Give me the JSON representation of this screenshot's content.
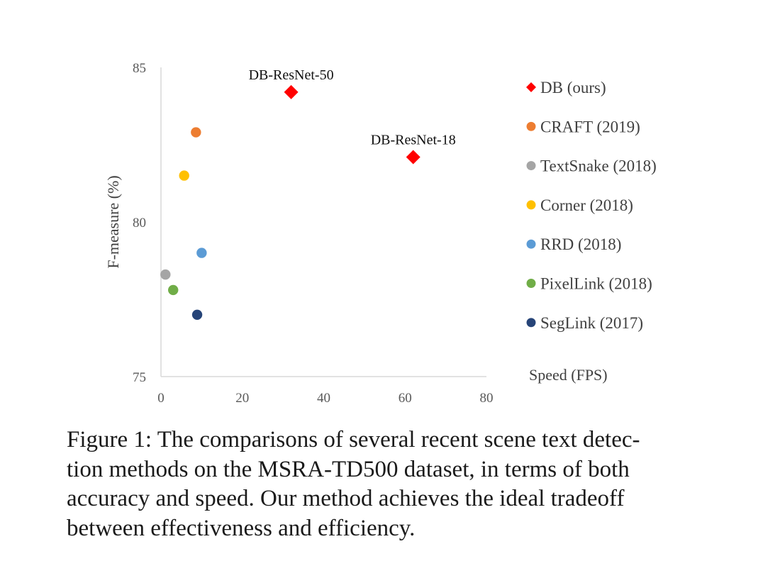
{
  "chart_data": {
    "type": "scatter",
    "xlabel": "Speed (FPS)",
    "ylabel": "F-measure (%)",
    "xlim": [
      0,
      80
    ],
    "ylim": [
      75,
      85
    ],
    "x_ticks": [
      0,
      20,
      40,
      60,
      80
    ],
    "y_ticks": [
      75,
      80,
      85
    ],
    "grid": false,
    "legend_position": "right",
    "series": [
      {
        "name": "DB (ours)",
        "marker": "diamond",
        "color": "#ff0000",
        "points": [
          {
            "x": 32,
            "y": 84.2,
            "label": "DB-ResNet-50"
          },
          {
            "x": 62,
            "y": 82.1,
            "label": "DB-ResNet-18"
          }
        ]
      },
      {
        "name": "CRAFT (2019)",
        "marker": "circle",
        "color": "#ed7d31",
        "points": [
          {
            "x": 8.6,
            "y": 82.9
          }
        ]
      },
      {
        "name": "TextSnake (2018)",
        "marker": "circle",
        "color": "#a5a5a5",
        "points": [
          {
            "x": 1.1,
            "y": 78.3
          }
        ]
      },
      {
        "name": "Corner (2018)",
        "marker": "circle",
        "color": "#ffc000",
        "points": [
          {
            "x": 5.7,
            "y": 81.5
          }
        ]
      },
      {
        "name": "RRD (2018)",
        "marker": "circle",
        "color": "#5b9bd5",
        "points": [
          {
            "x": 10,
            "y": 79
          }
        ]
      },
      {
        "name": "PixelLink (2018)",
        "marker": "circle",
        "color": "#70ad47",
        "points": [
          {
            "x": 3,
            "y": 77.8
          }
        ]
      },
      {
        "name": "SegLink (2017)",
        "marker": "circle",
        "color": "#264478",
        "points": [
          {
            "x": 8.9,
            "y": 77
          }
        ]
      }
    ]
  },
  "caption": {
    "lines": [
      "Figure 1: The comparisons of several recent scene text detec-",
      "tion methods on the MSRA-TD500 dataset, in terms of both",
      "accuracy and speed. Our method achieves the ideal tradeoff",
      "between effectiveness and efficiency."
    ]
  }
}
